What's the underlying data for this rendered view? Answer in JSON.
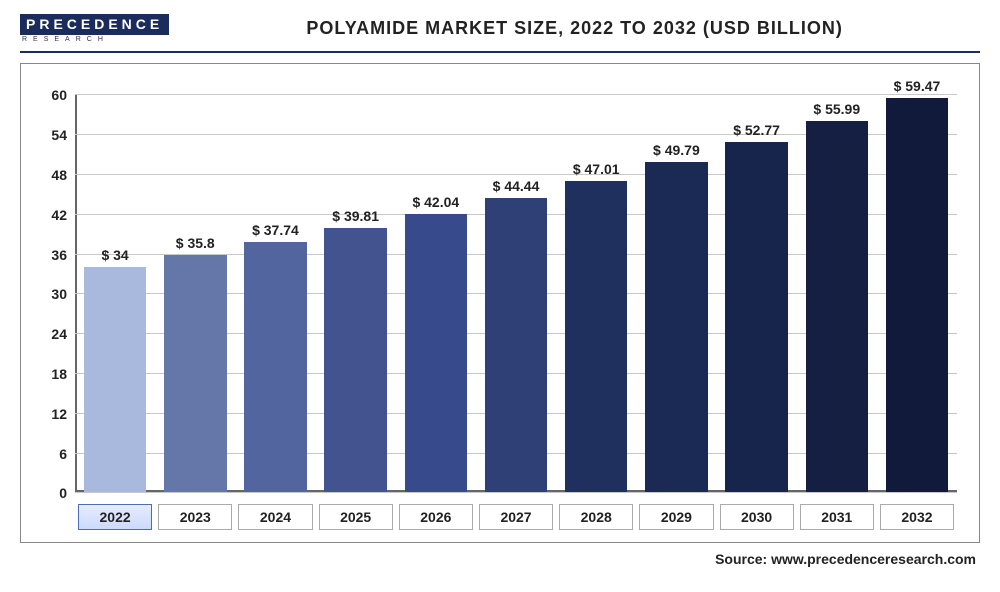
{
  "header": {
    "logo_top": "PRECEDENCE",
    "logo_bottom": "RESEARCH",
    "title": "POLYAMIDE MARKET SIZE, 2022 TO 2032 (USD BILLION)"
  },
  "chart": {
    "type": "bar",
    "ylim": [
      0,
      60
    ],
    "ytick_step": 6,
    "yticks": [
      0,
      6,
      12,
      18,
      24,
      30,
      36,
      42,
      48,
      54,
      60
    ],
    "grid_color": "#c8c8c8",
    "background_color": "#ffffff",
    "categories": [
      "2022",
      "2023",
      "2024",
      "2025",
      "2026",
      "2027",
      "2028",
      "2029",
      "2030",
      "2031",
      "2032"
    ],
    "values": [
      34,
      35.8,
      37.74,
      39.81,
      42.04,
      44.44,
      47.01,
      49.79,
      52.77,
      55.99,
      59.47
    ],
    "value_labels": [
      "$ 34",
      "$ 35.8",
      "$ 37.74",
      "$ 39.81",
      "$ 42.04",
      "$ 44.44",
      "$ 47.01",
      "$ 49.79",
      "$ 52.77",
      "$ 55.99",
      "$ 59.47"
    ],
    "bar_colors": [
      "#a9b8dd",
      "#6577a9",
      "#53659f",
      "#43538f",
      "#374a8c",
      "#2f4076",
      "#1f2f5e",
      "#1b2a54",
      "#17254c",
      "#141f42",
      "#111a3a"
    ],
    "bar_width": 0.78,
    "label_fontsize": 14,
    "highlight_index": 0,
    "highlight_box_bg": "#cddafb",
    "highlight_box_border": "#4a6db5"
  },
  "source": "Source: www.precedenceresearch.com"
}
